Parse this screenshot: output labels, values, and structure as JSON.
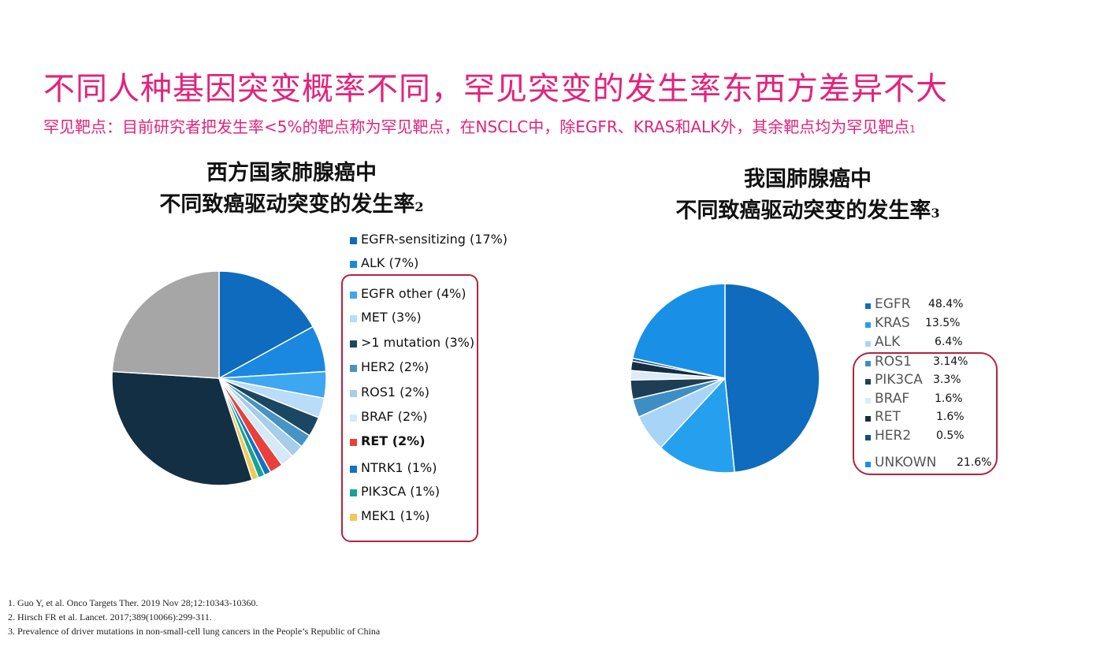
{
  "slide": {
    "title": "不同人种基因突变概率不同，罕见突变的发生率东西方差异不大",
    "subtitle": "罕见靶点：目前研究者把发生率<5%的靶点称为罕见靶点，在NSCLC中，除EGFR、KRAS和ALK外，其余靶点均为罕见靶点",
    "subtitle_ref": "1"
  },
  "chart_data": [
    {
      "type": "pie",
      "title_line1": "西方国家肺腺癌中",
      "title_line2": "不同致癌驱动突变的发生率",
      "title_ref": "2",
      "slices": [
        {
          "label": "EGFR-sensitizing (17%)",
          "value": 17,
          "color": "#0f6bbd",
          "bold": false
        },
        {
          "label": "ALK (7%)",
          "value": 7,
          "color": "#1a88e0",
          "bold": false
        },
        {
          "label": "EGFR other (4%)",
          "value": 4,
          "color": "#3da7f2",
          "bold": false
        },
        {
          "label": "MET (3%)",
          "value": 3,
          "color": "#b9dcf8",
          "bold": false
        },
        {
          "label": ">1 mutation (3%)",
          "value": 3,
          "color": "#1b4763",
          "bold": false
        },
        {
          "label": "HER2 (2%)",
          "value": 2,
          "color": "#4693c6",
          "bold": false
        },
        {
          "label": "ROS1 (2%)",
          "value": 2,
          "color": "#a6cde9",
          "bold": false
        },
        {
          "label": "BRAF (2%)",
          "value": 2,
          "color": "#d5e9f8",
          "bold": false
        },
        {
          "label": "RET (2%)",
          "value": 2,
          "color": "#e8403a",
          "bold": true
        },
        {
          "label": "NTRK1 (1%)",
          "value": 1,
          "color": "#1273c4",
          "bold": false
        },
        {
          "label": "PIK3CA (1%)",
          "value": 1,
          "color": "#16a394",
          "bold": false
        },
        {
          "label": "MEK1 (1%)",
          "value": 1,
          "color": "#f2c85a",
          "bold": false
        },
        {
          "value": 31,
          "color": "#132f43"
        },
        {
          "value": 24,
          "color": "#a6a6a6"
        }
      ]
    },
    {
      "type": "pie",
      "title_line1": "我国肺腺癌中",
      "title_line2": "不同致癌驱动突变的发生率",
      "title_ref": "3",
      "slices": [
        {
          "label": "EGFR",
          "value_label": "48.4%",
          "value": 48.4,
          "color": "#0f6bbd"
        },
        {
          "label": "KRAS",
          "value_label": "13.5%",
          "value": 13.5,
          "color": "#24a0ef"
        },
        {
          "label": "ALK",
          "value_label": "6.4%",
          "value": 6.4,
          "color": "#a8d4f8"
        },
        {
          "label": "ROS1",
          "value_label": "3.14%",
          "value": 3.14,
          "color": "#3f8ec3"
        },
        {
          "label": "PIK3CA",
          "value_label": "3.3%",
          "value": 3.3,
          "color": "#1e3e54"
        },
        {
          "label": "BRAF",
          "value_label": "1.6%",
          "value": 1.6,
          "color": "#dcebf7"
        },
        {
          "label": "RET",
          "value_label": "1.6%",
          "value": 1.6,
          "color": "#132f43"
        },
        {
          "label": "HER2",
          "value_label": "0.5%",
          "value": 0.5,
          "color": "#0f4f80"
        },
        {
          "label": "UNKOWN",
          "value_label": "21.6%",
          "value": 21.6,
          "color": "#1a8fe6"
        }
      ]
    }
  ],
  "references": [
    "1. Guo Y, et al. Onco Targets Ther. 2019 Nov 28;12:10343-10360.",
    "2. Hirsch FR et al. Lancet. 2017;389(10066):299-311.",
    "3. Prevalence of driver mutations in non-small-cell lung cancers in the People’s Republic of China"
  ]
}
